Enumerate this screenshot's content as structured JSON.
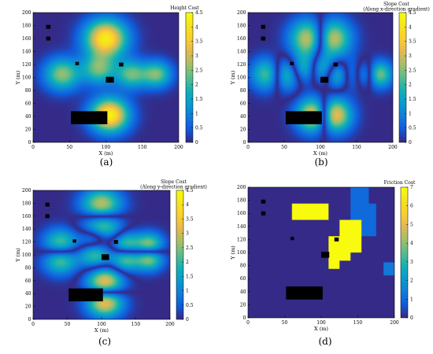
{
  "chart_data": [
    {
      "type": "heatmap",
      "panel": "(a)",
      "colorbar_title": "Height Cost",
      "colorbar_subtitle": "",
      "xlabel": "X (m)",
      "ylabel": "Y (m)",
      "xlim": [
        0,
        200
      ],
      "ylim": [
        0,
        200
      ],
      "xticks": [
        0,
        50,
        100,
        150,
        200
      ],
      "yticks": [
        0,
        20,
        40,
        60,
        80,
        100,
        120,
        140,
        160,
        180,
        200
      ],
      "clim": [
        0,
        4.5
      ],
      "cticks": [
        "0",
        "0.5",
        "1",
        "1.5",
        "2",
        "2.5",
        "3",
        "3.5",
        "4",
        "4.5"
      ],
      "colormap": "parula",
      "hills": [
        {
          "x": 100,
          "y": 160,
          "h": 4.2,
          "s": 20
        },
        {
          "x": 40,
          "y": 105,
          "h": 2.6,
          "s": 17
        },
        {
          "x": 90,
          "y": 113,
          "h": 2.3,
          "s": 16
        },
        {
          "x": 135,
          "y": 105,
          "h": 2.3,
          "s": 15
        },
        {
          "x": 170,
          "y": 105,
          "h": 2.4,
          "s": 14
        },
        {
          "x": 105,
          "y": 42,
          "h": 4.3,
          "s": 18
        }
      ],
      "obstacles": [
        {
          "x0": 18,
          "x1": 24,
          "y0": 175,
          "y1": 181
        },
        {
          "x0": 18,
          "x1": 24,
          "y0": 157,
          "y1": 163
        },
        {
          "x0": 58,
          "x1": 63,
          "y0": 119,
          "y1": 124
        },
        {
          "x0": 118,
          "x1": 124,
          "y0": 117,
          "y1": 123
        },
        {
          "x0": 100,
          "x1": 111,
          "y0": 92,
          "y1": 101
        },
        {
          "x0": 52,
          "x1": 102,
          "y0": 28,
          "y1": 48
        }
      ]
    },
    {
      "type": "heatmap",
      "panel": "(b)",
      "colorbar_title": "Slope Cost",
      "colorbar_subtitle": "(Along x-direction gradient)",
      "xlabel": "X (m)",
      "ylabel": "Y (m)",
      "xlim": [
        0,
        200
      ],
      "ylim": [
        0,
        200
      ],
      "xticks": [
        0,
        50,
        100,
        150,
        200
      ],
      "yticks": [
        0,
        20,
        40,
        60,
        80,
        100,
        120,
        140,
        160,
        180,
        200
      ],
      "clim": [
        0,
        4.5
      ],
      "cticks": [
        "0",
        "0.5",
        "1",
        "1.5",
        "2",
        "2.5",
        "3",
        "3.5",
        "4",
        "4.5"
      ],
      "colormap": "parula",
      "derivative": "x",
      "obstacles": [
        {
          "x0": 18,
          "x1": 24,
          "y0": 175,
          "y1": 181
        },
        {
          "x0": 18,
          "x1": 24,
          "y0": 157,
          "y1": 163
        },
        {
          "x0": 58,
          "x1": 63,
          "y0": 119,
          "y1": 124
        },
        {
          "x0": 118,
          "x1": 124,
          "y0": 117,
          "y1": 123
        },
        {
          "x0": 100,
          "x1": 111,
          "y0": 92,
          "y1": 101
        },
        {
          "x0": 52,
          "x1": 102,
          "y0": 28,
          "y1": 48
        }
      ]
    },
    {
      "type": "heatmap",
      "panel": "(c)",
      "colorbar_title": "Slope Cost",
      "colorbar_subtitle": "(Along y-direction gradient)",
      "xlabel": "X (m)",
      "ylabel": "Y (m)",
      "xlim": [
        0,
        200
      ],
      "ylim": [
        0,
        200
      ],
      "xticks": [
        0,
        50,
        100,
        150,
        200
      ],
      "yticks": [
        0,
        20,
        40,
        60,
        80,
        100,
        120,
        140,
        160,
        180,
        200
      ],
      "clim": [
        0,
        4.5
      ],
      "cticks": [
        "0",
        "0.5",
        "1",
        "1.5",
        "2",
        "2.5",
        "3",
        "3.5",
        "4",
        "4.5"
      ],
      "colormap": "parula",
      "derivative": "y",
      "obstacles": [
        {
          "x0": 18,
          "x1": 24,
          "y0": 175,
          "y1": 181
        },
        {
          "x0": 18,
          "x1": 24,
          "y0": 157,
          "y1": 163
        },
        {
          "x0": 58,
          "x1": 63,
          "y0": 119,
          "y1": 124
        },
        {
          "x0": 118,
          "x1": 124,
          "y0": 117,
          "y1": 123
        },
        {
          "x0": 100,
          "x1": 111,
          "y0": 92,
          "y1": 101
        },
        {
          "x0": 52,
          "x1": 102,
          "y0": 28,
          "y1": 48
        }
      ]
    },
    {
      "type": "heatmap",
      "panel": "(d)",
      "colorbar_title": "Friction Cost",
      "colorbar_subtitle": "",
      "xlabel": "X (m)",
      "ylabel": "Y (m)",
      "xlim": [
        0,
        200
      ],
      "ylim": [
        0,
        200
      ],
      "xticks": [
        0,
        50,
        100,
        150,
        200
      ],
      "yticks": [
        0,
        20,
        40,
        60,
        80,
        100,
        120,
        140,
        160,
        180,
        200
      ],
      "clim": [
        0,
        7
      ],
      "cticks": [
        "0",
        "1",
        "2",
        "3",
        "4",
        "5",
        "6",
        "7"
      ],
      "colormap": "parula",
      "background_value": 0,
      "regions": [
        {
          "x0": 60,
          "x1": 110,
          "y0": 150,
          "y1": 175,
          "value": 7
        },
        {
          "x0": 140,
          "x1": 165,
          "y0": 175,
          "y1": 200,
          "value": 1
        },
        {
          "x0": 140,
          "x1": 175,
          "y0": 150,
          "y1": 175,
          "value": 1
        },
        {
          "x0": 155,
          "x1": 175,
          "y0": 125,
          "y1": 150,
          "value": 1
        },
        {
          "x0": 125,
          "x1": 155,
          "y0": 125,
          "y1": 150,
          "value": 7
        },
        {
          "x0": 110,
          "x1": 155,
          "y0": 100,
          "y1": 125,
          "value": 7
        },
        {
          "x0": 110,
          "x1": 140,
          "y0": 88,
          "y1": 100,
          "value": 7
        },
        {
          "x0": 110,
          "x1": 125,
          "y0": 75,
          "y1": 88,
          "value": 7
        },
        {
          "x0": 185,
          "x1": 200,
          "y0": 65,
          "y1": 85,
          "value": 1.3
        }
      ],
      "obstacles": [
        {
          "x0": 18,
          "x1": 24,
          "y0": 175,
          "y1": 181
        },
        {
          "x0": 18,
          "x1": 24,
          "y0": 157,
          "y1": 163
        },
        {
          "x0": 58,
          "x1": 63,
          "y0": 119,
          "y1": 124
        },
        {
          "x0": 118,
          "x1": 124,
          "y0": 117,
          "y1": 123
        },
        {
          "x0": 100,
          "x1": 111,
          "y0": 92,
          "y1": 101
        },
        {
          "x0": 52,
          "x1": 102,
          "y0": 28,
          "y1": 48
        }
      ]
    }
  ]
}
